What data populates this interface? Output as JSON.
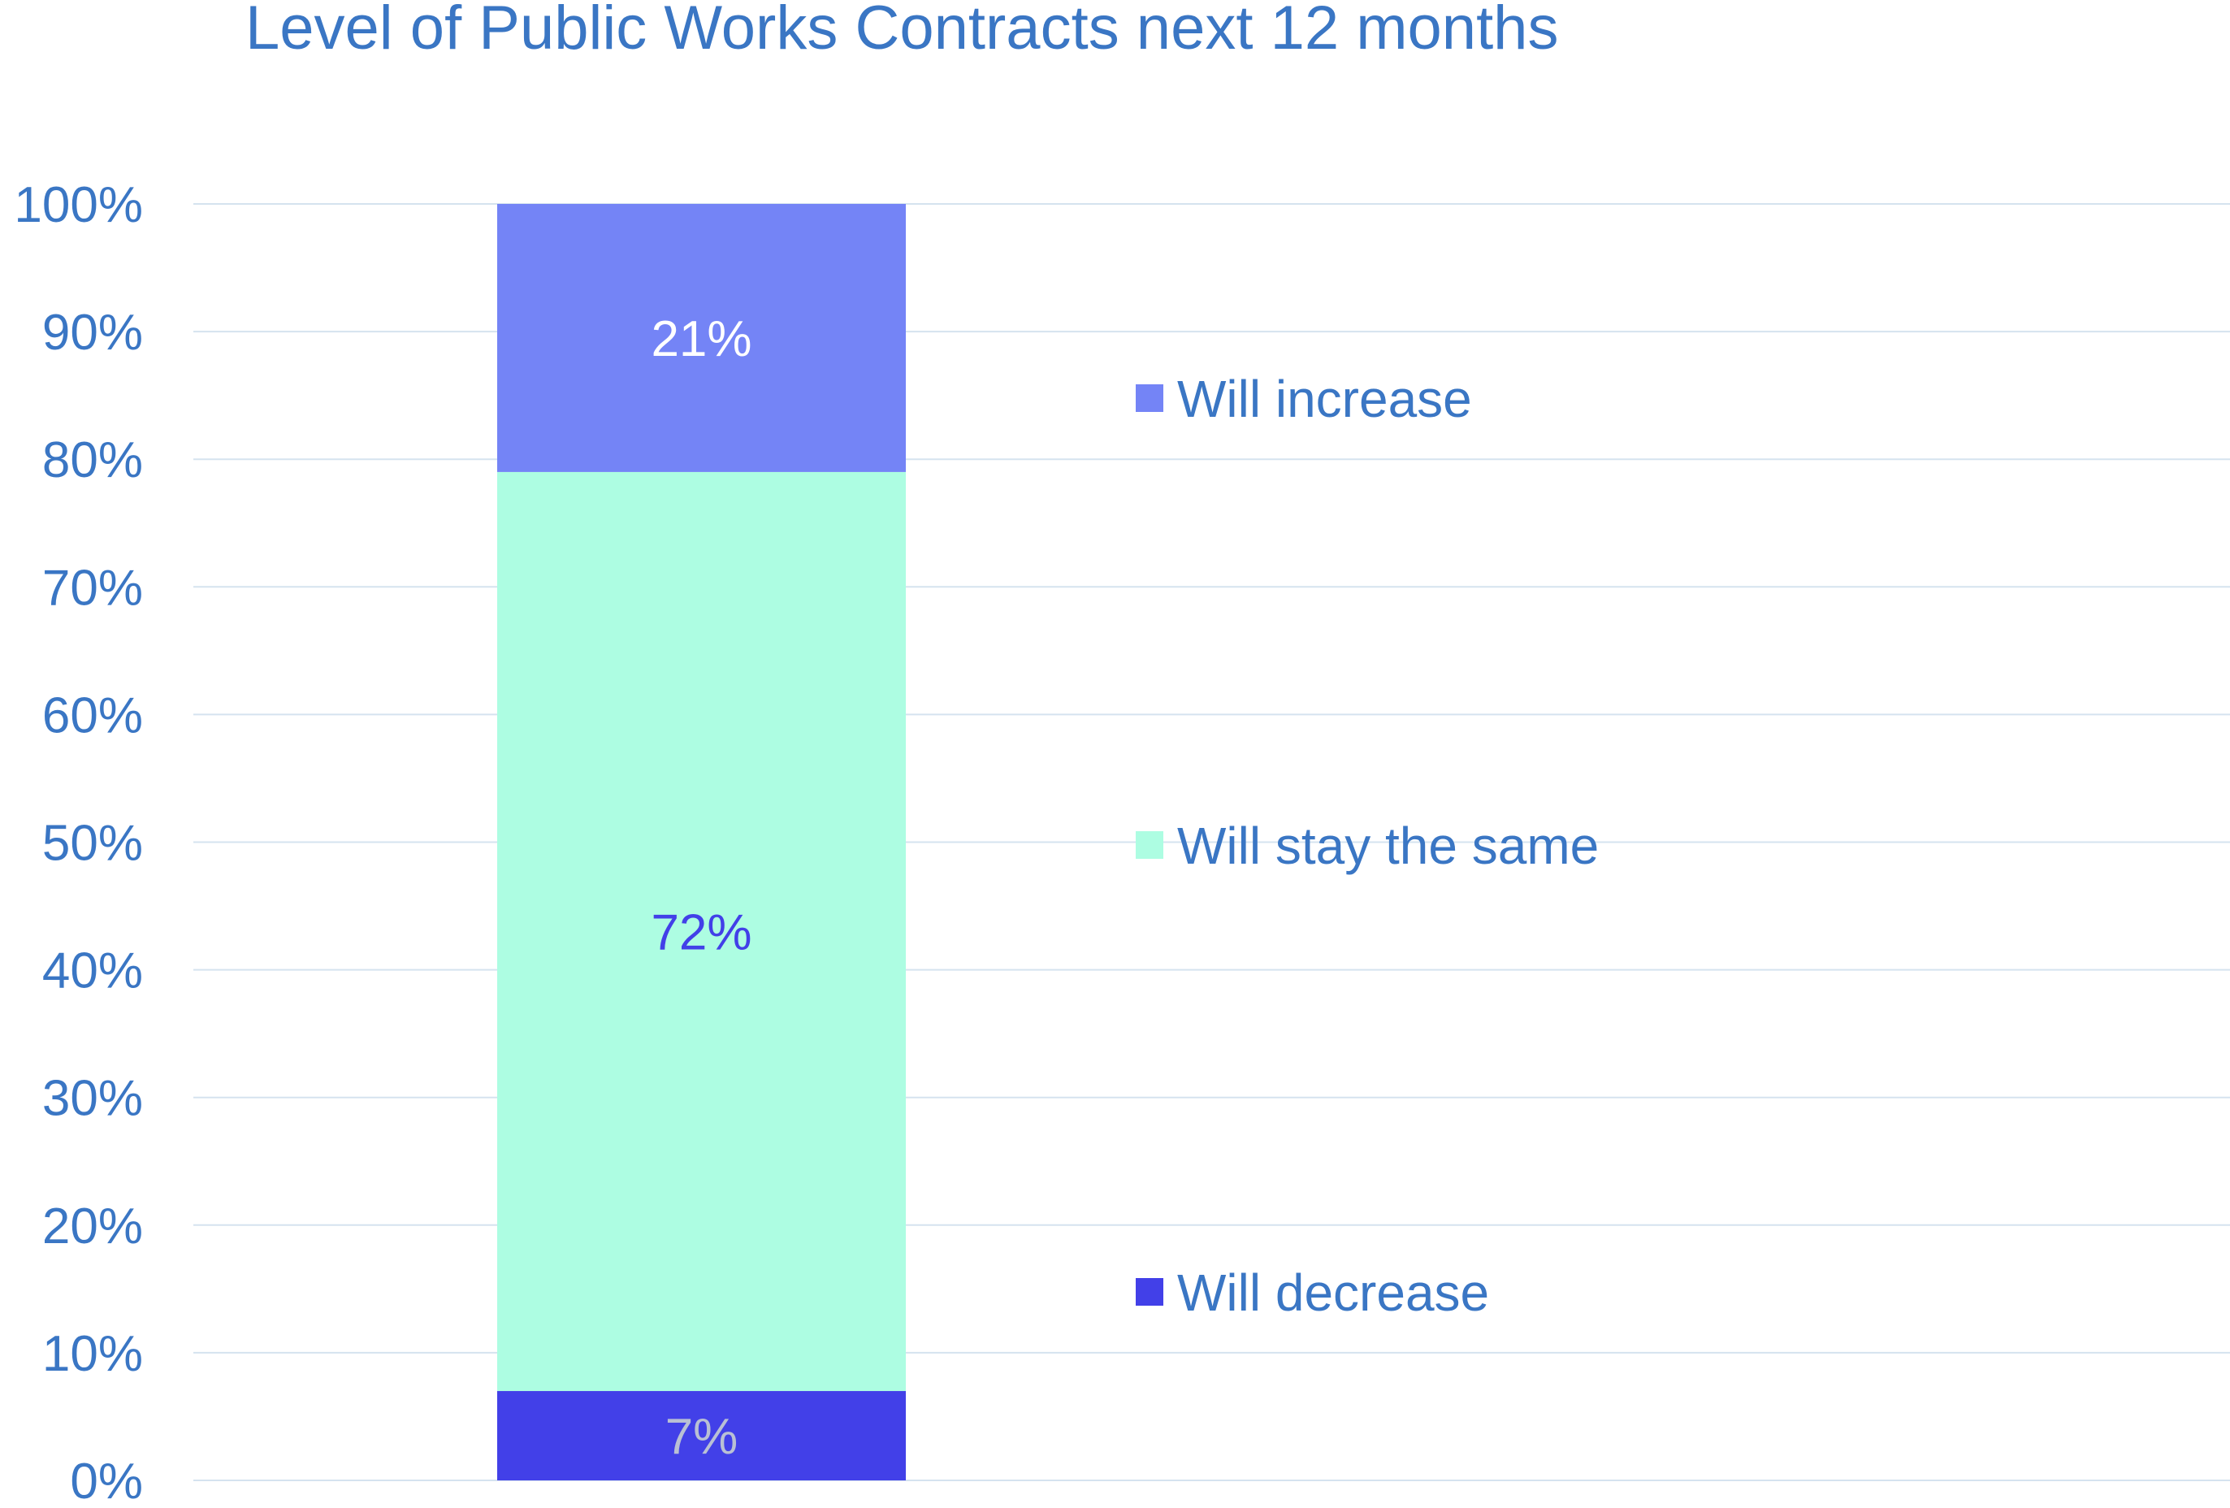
{
  "chart_data": {
    "type": "bar",
    "stacked": true,
    "title": "Level of Public Works Contracts next 12 months",
    "xlabel": "",
    "ylabel": "",
    "ylim": [
      0,
      100
    ],
    "yticks": [
      "0%",
      "10%",
      "20%",
      "30%",
      "40%",
      "50%",
      "60%",
      "70%",
      "80%",
      "90%",
      "100%"
    ],
    "grid": true,
    "legend_position": "right",
    "categories": [
      ""
    ],
    "series": [
      {
        "name": "Will decrease",
        "values": [
          7
        ],
        "label": "7%",
        "color": "#4240e8",
        "label_color": "#b9c0d4"
      },
      {
        "name": "Will stay the same",
        "values": [
          72
        ],
        "label": "72%",
        "color": "#adfde2",
        "label_color": "#4240e8"
      },
      {
        "name": "Will increase",
        "values": [
          21
        ],
        "label": "21%",
        "color": "#7484f6",
        "label_color": "#ffffff"
      }
    ],
    "legend_order": [
      "Will increase",
      "Will stay the same",
      "Will decrease"
    ]
  }
}
